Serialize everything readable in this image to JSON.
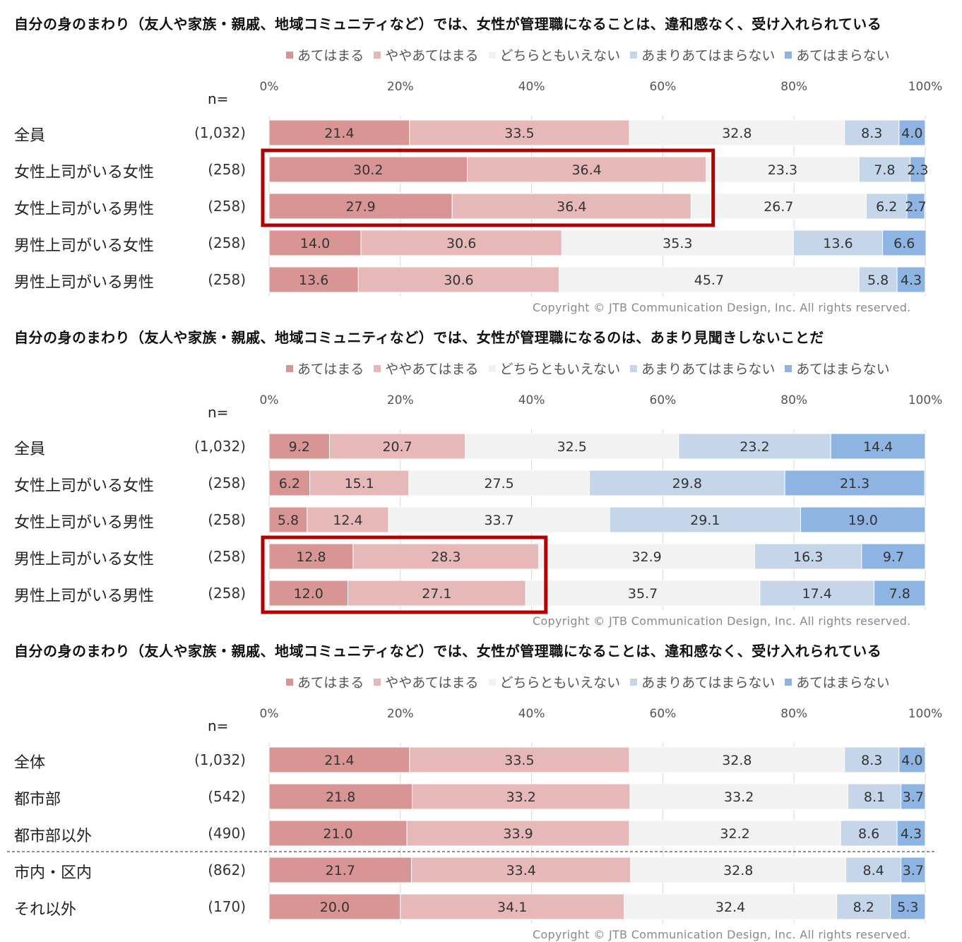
{
  "legend": {
    "categories": [
      "あてはまる",
      "ややあてはまる",
      "どちらともいえない",
      "あまりあてはまらない",
      "あてはまらない"
    ],
    "colors": [
      "#d99594",
      "#e6b9b8",
      "#f2f2f2",
      "#c5d5ea",
      "#8eb4e3"
    ]
  },
  "n_label": "n=",
  "ticks": [
    "0%",
    "20%",
    "40%",
    "60%",
    "80%",
    "100%"
  ],
  "copyright": "Copyright © JTB Communication Design, Inc. All rights reserved.",
  "chart_data": [
    {
      "type": "bar",
      "stacked": true,
      "orientation": "horizontal",
      "title": "自分の身のまわり（友人や家族・親戚、地域コミュニティなど）では、女性が管理職になることは、違和感なく、受け入れられている",
      "xlim": [
        0,
        100
      ],
      "categories": [
        "全員",
        "女性上司がいる女性",
        "女性上司がいる男性",
        "男性上司がいる女性",
        "男性上司がいる男性"
      ],
      "n": [
        "(1,032)",
        "(258)",
        "(258)",
        "(258)",
        "(258)"
      ],
      "series": [
        {
          "name": "あてはまる",
          "values": [
            21.4,
            30.2,
            27.9,
            14.0,
            13.6
          ]
        },
        {
          "name": "ややあてはまる",
          "values": [
            33.5,
            36.4,
            36.4,
            30.6,
            30.6
          ]
        },
        {
          "name": "どちらともいえない",
          "values": [
            32.8,
            23.3,
            26.7,
            35.3,
            45.7
          ]
        },
        {
          "name": "あまりあてはまらない",
          "values": [
            8.3,
            7.8,
            6.2,
            13.6,
            5.8
          ]
        },
        {
          "name": "あてはまらない",
          "values": [
            4.0,
            2.3,
            2.7,
            6.6,
            4.3
          ]
        }
      ],
      "labels": [
        [
          "21.4",
          "30.2",
          "27.9",
          "14.0",
          "13.6"
        ],
        [
          "33.5",
          "36.4",
          "36.4",
          "30.6",
          "30.6"
        ],
        [
          "32.8",
          "23.3",
          "26.7",
          "35.3",
          "45.7"
        ],
        [
          "8.3",
          "7.8",
          "6.2",
          "13.6",
          "5.8"
        ],
        [
          "4.0",
          "2.3",
          "2.7",
          "6.6",
          "4.3"
        ]
      ],
      "highlight_rows": [
        1,
        2
      ],
      "separator_after": null
    },
    {
      "type": "bar",
      "stacked": true,
      "orientation": "horizontal",
      "title": "自分の身のまわり（友人や家族・親戚、地域コミュニティなど）では、女性が管理職になるのは、あまり見聞きしないことだ",
      "xlim": [
        0,
        100
      ],
      "categories": [
        "全員",
        "女性上司がいる女性",
        "女性上司がいる男性",
        "男性上司がいる女性",
        "男性上司がいる男性"
      ],
      "n": [
        "(1,032)",
        "(258)",
        "(258)",
        "(258)",
        "(258)"
      ],
      "series": [
        {
          "name": "あてはまる",
          "values": [
            9.2,
            6.2,
            5.8,
            12.8,
            12.0
          ]
        },
        {
          "name": "ややあてはまる",
          "values": [
            20.7,
            15.1,
            12.4,
            28.3,
            27.1
          ]
        },
        {
          "name": "どちらともいえない",
          "values": [
            32.5,
            27.5,
            33.7,
            32.9,
            35.7
          ]
        },
        {
          "name": "あまりあてはまらない",
          "values": [
            23.2,
            29.8,
            29.1,
            16.3,
            17.4
          ]
        },
        {
          "name": "あてはまらない",
          "values": [
            14.4,
            21.3,
            19.0,
            9.7,
            7.8
          ]
        }
      ],
      "labels": [
        [
          "9.2",
          "6.2",
          "5.8",
          "12.8",
          "12.0"
        ],
        [
          "20.7",
          "15.1",
          "12.4",
          "28.3",
          "27.1"
        ],
        [
          "32.5",
          "27.5",
          "33.7",
          "32.9",
          "35.7"
        ],
        [
          "23.2",
          "29.8",
          "29.1",
          "16.3",
          "17.4"
        ],
        [
          "14.4",
          "21.3",
          "19.0",
          "9.7",
          "7.8"
        ]
      ],
      "highlight_rows": [
        3,
        4
      ],
      "separator_after": null
    },
    {
      "type": "bar",
      "stacked": true,
      "orientation": "horizontal",
      "title": "自分の身のまわり（友人や家族・親戚、地域コミュニティなど）では、女性が管理職になることは、違和感なく、受け入れられている",
      "xlim": [
        0,
        100
      ],
      "categories": [
        "全体",
        "都市部",
        "都市部以外",
        "市内・区内",
        "それ以外"
      ],
      "n": [
        "(1,032)",
        "(542)",
        "(490)",
        "(862)",
        "(170)"
      ],
      "series": [
        {
          "name": "あてはまる",
          "values": [
            21.4,
            21.8,
            21.0,
            21.7,
            20.0
          ]
        },
        {
          "name": "ややあてはまる",
          "values": [
            33.5,
            33.2,
            33.9,
            33.4,
            34.1
          ]
        },
        {
          "name": "どちらともいえない",
          "values": [
            32.8,
            33.2,
            32.2,
            32.8,
            32.4
          ]
        },
        {
          "name": "あまりあてはまらない",
          "values": [
            8.3,
            8.1,
            8.6,
            8.4,
            8.2
          ]
        },
        {
          "name": "あてはまらない",
          "values": [
            4.0,
            3.7,
            4.3,
            3.7,
            5.3
          ]
        }
      ],
      "labels": [
        [
          "21.4",
          "21.8",
          "21.0",
          "21.7",
          "20.0"
        ],
        [
          "33.5",
          "33.2",
          "33.9",
          "33.4",
          "34.1"
        ],
        [
          "32.8",
          "33.2",
          "32.2",
          "32.8",
          "32.4"
        ],
        [
          "8.3",
          "8.1",
          "8.6",
          "8.4",
          "8.2"
        ],
        [
          "4.0",
          "3.7",
          "4.3",
          "3.7",
          "5.3"
        ]
      ],
      "highlight_rows": [],
      "separator_after": 2
    }
  ]
}
